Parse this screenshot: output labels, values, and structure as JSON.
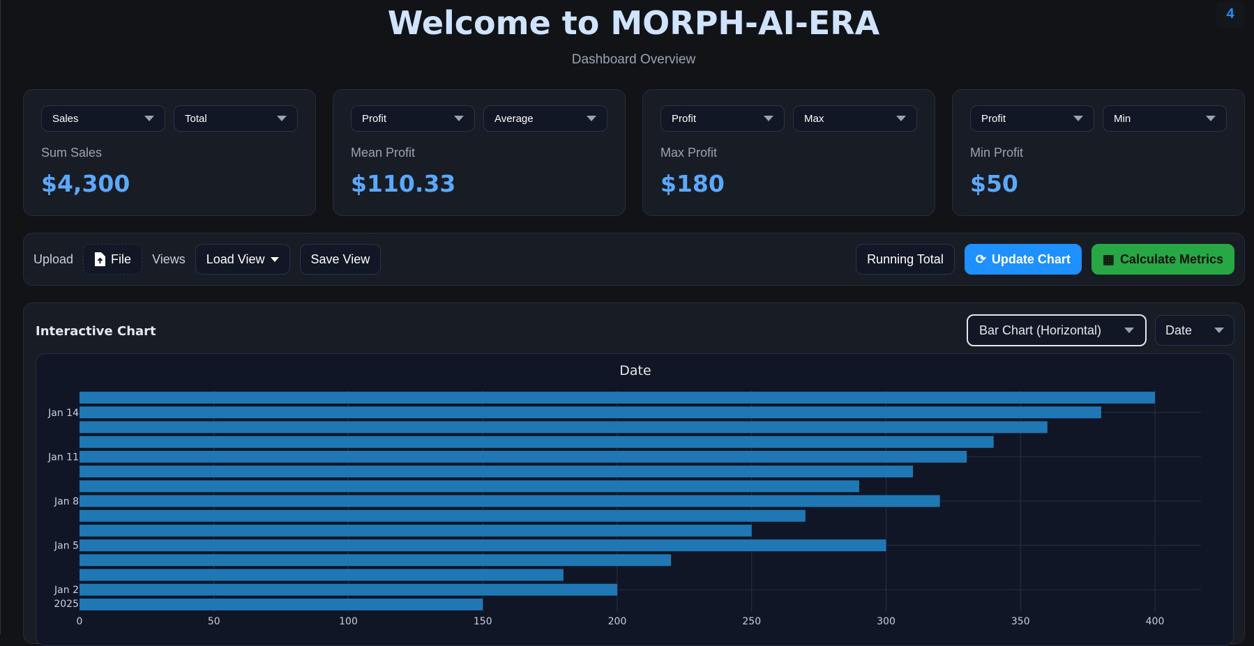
{
  "header": {
    "title": "Welcome to MORPH-AI-ERA",
    "subtitle": "Dashboard Overview",
    "badge": "4"
  },
  "cards": [
    {
      "field": "Sales",
      "agg": "Total",
      "label": "Sum Sales",
      "value": "$4,300"
    },
    {
      "field": "Profit",
      "agg": "Average",
      "label": "Mean Profit",
      "value": "$110.33"
    },
    {
      "field": "Profit",
      "agg": "Max",
      "label": "Max Profit",
      "value": "$180"
    },
    {
      "field": "Profit",
      "agg": "Min",
      "label": "Min Profit",
      "value": "$50"
    }
  ],
  "toolbar": {
    "upload_label": "Upload",
    "file_button": "File",
    "views_label": "Views",
    "load_view": "Load View",
    "save_view": "Save View",
    "running_total": "Running Total",
    "update_chart": "Update Chart",
    "calculate_metrics": "Calculate Metrics"
  },
  "panel": {
    "title": "Interactive Chart",
    "chart_type": "Bar Chart (Horizontal)",
    "x_field": "Date"
  },
  "colors": {
    "bar": "#1f77b4",
    "accent": "#1e90ff",
    "success": "#28a745"
  },
  "chart_data": {
    "type": "bar",
    "orientation": "horizontal",
    "title": "Date",
    "categories": [
      "2025-01-01",
      "2025-01-02",
      "2025-01-03",
      "2025-01-04",
      "2025-01-05",
      "2025-01-06",
      "2025-01-07",
      "2025-01-08",
      "2025-01-09",
      "2025-01-10",
      "2025-01-11",
      "2025-01-12",
      "2025-01-13",
      "2025-01-14",
      "2025-01-15"
    ],
    "values": [
      150,
      200,
      180,
      220,
      300,
      250,
      270,
      320,
      290,
      310,
      330,
      340,
      360,
      380,
      400
    ],
    "xlim": [
      0,
      420
    ],
    "x_ticks": [
      "0",
      "50",
      "100",
      "150",
      "200",
      "250",
      "300",
      "350",
      "400"
    ],
    "y_ticks": [
      {
        "date": "2025-01-02",
        "label": "Jan 2",
        "sublabel": "2025"
      },
      {
        "date": "2025-01-05",
        "label": "Jan 5"
      },
      {
        "date": "2025-01-08",
        "label": "Jan 8"
      },
      {
        "date": "2025-01-11",
        "label": "Jan 11"
      },
      {
        "date": "2025-01-14",
        "label": "Jan 14"
      }
    ],
    "grid": true
  }
}
